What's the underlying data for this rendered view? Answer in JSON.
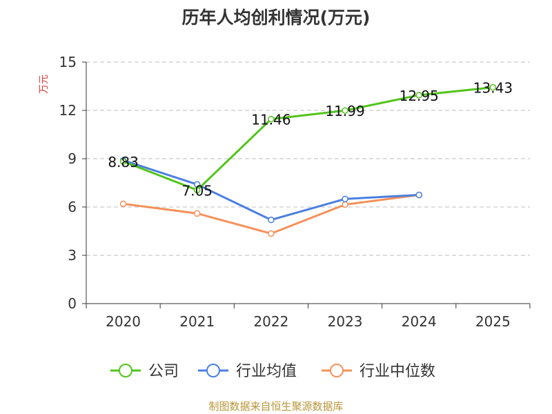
{
  "chart_data": {
    "type": "line",
    "title": "历年人均创利情况(万元)",
    "ylabel": "万元",
    "xlabel": "",
    "ylim": [
      0,
      15
    ],
    "yticks": [
      0,
      3,
      6,
      9,
      12,
      15
    ],
    "grid": true,
    "legend_position": "bottom",
    "categories": [
      "2020",
      "2021",
      "2022",
      "2023",
      "2024",
      "2025"
    ],
    "series": [
      {
        "name": "公司",
        "color": "#52c41a",
        "values": [
          8.83,
          7.05,
          11.46,
          11.99,
          12.95,
          13.43
        ],
        "labels": [
          "8.83",
          "7.05",
          "11.46",
          "11.99",
          "12.95",
          "13.43"
        ]
      },
      {
        "name": "行业均值",
        "color": "#4a7fe0",
        "values": [
          8.9,
          7.4,
          5.2,
          6.5,
          6.75,
          null
        ]
      },
      {
        "name": "行业中位数",
        "color": "#f4915a",
        "values": [
          6.2,
          5.6,
          4.35,
          6.15,
          6.75,
          null
        ]
      }
    ]
  },
  "footer": {
    "source": "制图数据来自恒生聚源数据库"
  }
}
